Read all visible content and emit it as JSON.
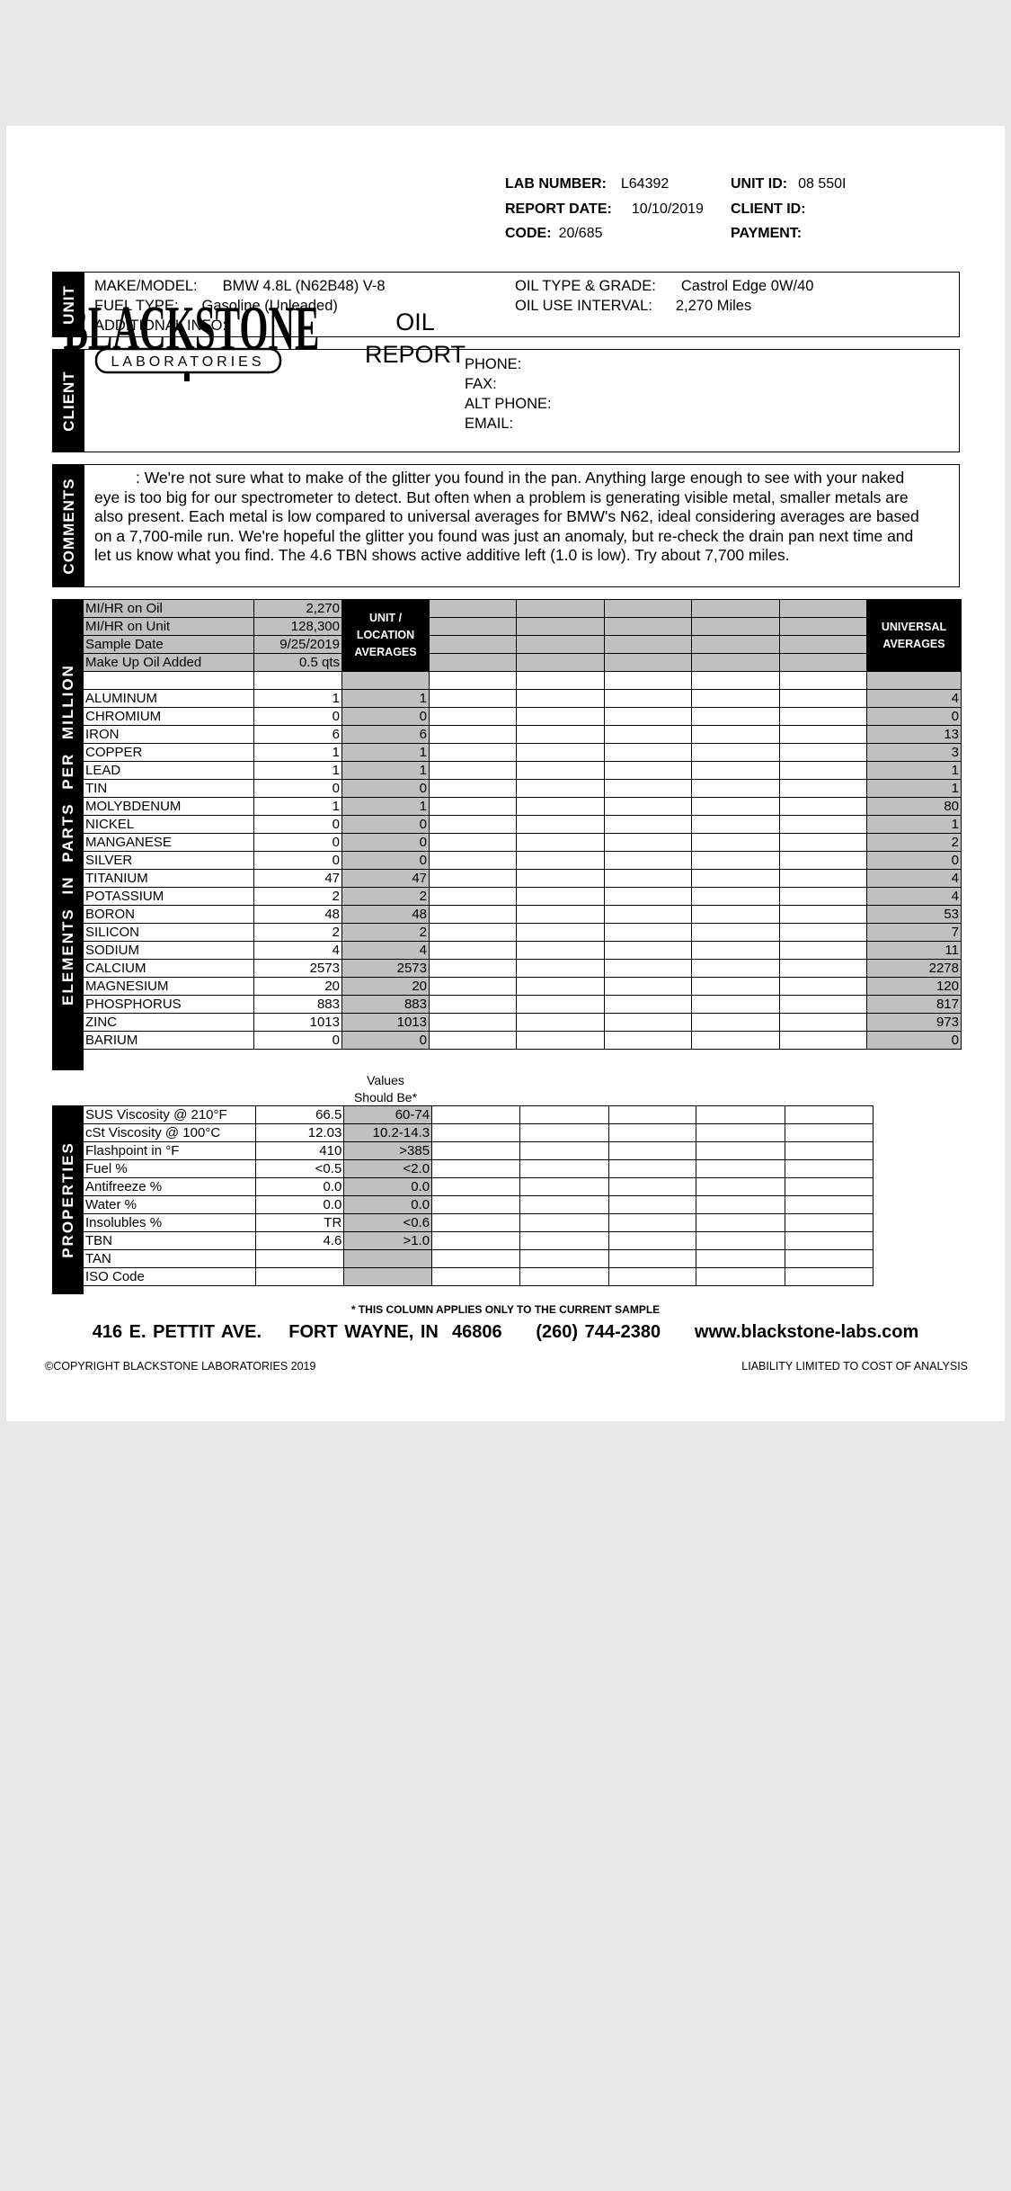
{
  "logo": {
    "name": "BLACKSTONE",
    "sub": "LABORATORIES"
  },
  "report_title": [
    "OIL",
    "REPORT"
  ],
  "header": {
    "lab_number_label": "LAB NUMBER:",
    "lab_number": "L64392",
    "report_date_label": "REPORT DATE:",
    "report_date": "10/10/2019",
    "code_label": "CODE:",
    "code": "20/685",
    "unit_id_label": "UNIT ID:",
    "unit_id": "08 550I",
    "client_id_label": "CLIENT ID:",
    "payment_label": "PAYMENT:"
  },
  "unit": {
    "section": "UNIT",
    "make_model_label": "MAKE/MODEL:",
    "make_model": "BMW 4.8L (N62B48) V-8",
    "fuel_type_label": "FUEL TYPE:",
    "fuel_type": "Gasoline (Unleaded)",
    "additional_info_label": "ADDITIONAL INFO:",
    "oil_type_label": "OIL TYPE & GRADE:",
    "oil_type": "Castrol Edge 0W/40",
    "oil_interval_label": "OIL USE INTERVAL:",
    "oil_interval": "2,270 Miles"
  },
  "client": {
    "section": "CLIENT",
    "phone_label": "PHONE:",
    "fax_label": "FAX:",
    "alt_phone_label": "ALT PHONE:",
    "email_label": "EMAIL:"
  },
  "comments": {
    "section": "COMMENTS",
    "text": ": We're not sure what to make of the glitter you found in the pan. Anything large enough to see with your naked eye is too big for our spectrometer to detect. But often when a problem is generating visible metal, smaller metals are also present. Each metal is low compared to universal averages for BMW's N62, ideal considering averages are based on a 7,700-mile run. We're hopeful the glitter you found was just an anomaly, but re-check the drain pan next time and let us know what you find. The 4.6 TBN shows active additive left (1.0 is low). Try about 7,700 miles."
  },
  "elements": {
    "section": "ELEMENTS IN PARTS PER MILLION",
    "unit_avg_header": "UNIT / LOCATION AVERAGES",
    "universal_header": "UNIVERSAL AVERAGES",
    "sample_info": [
      {
        "label": "MI/HR on Oil",
        "value": "2,270"
      },
      {
        "label": "MI/HR on Unit",
        "value": "128,300"
      },
      {
        "label": "Sample Date",
        "value": "9/25/2019"
      },
      {
        "label": "Make Up Oil Added",
        "value": "0.5 qts"
      }
    ],
    "rows": [
      {
        "name": "ALUMINUM",
        "value": "1",
        "unit_avg": "1",
        "universal": "4"
      },
      {
        "name": "CHROMIUM",
        "value": "0",
        "unit_avg": "0",
        "universal": "0"
      },
      {
        "name": "IRON",
        "value": "6",
        "unit_avg": "6",
        "universal": "13"
      },
      {
        "name": "COPPER",
        "value": "1",
        "unit_avg": "1",
        "universal": "3"
      },
      {
        "name": "LEAD",
        "value": "1",
        "unit_avg": "1",
        "universal": "1"
      },
      {
        "name": "TIN",
        "value": "0",
        "unit_avg": "0",
        "universal": "1"
      },
      {
        "name": "MOLYBDENUM",
        "value": "1",
        "unit_avg": "1",
        "universal": "80"
      },
      {
        "name": "NICKEL",
        "value": "0",
        "unit_avg": "0",
        "universal": "1"
      },
      {
        "name": "MANGANESE",
        "value": "0",
        "unit_avg": "0",
        "universal": "2"
      },
      {
        "name": "SILVER",
        "value": "0",
        "unit_avg": "0",
        "universal": "0"
      },
      {
        "name": "TITANIUM",
        "value": "47",
        "unit_avg": "47",
        "universal": "4"
      },
      {
        "name": "POTASSIUM",
        "value": "2",
        "unit_avg": "2",
        "universal": "4"
      },
      {
        "name": "BORON",
        "value": "48",
        "unit_avg": "48",
        "universal": "53"
      },
      {
        "name": "SILICON",
        "value": "2",
        "unit_avg": "2",
        "universal": "7"
      },
      {
        "name": "SODIUM",
        "value": "4",
        "unit_avg": "4",
        "universal": "11"
      },
      {
        "name": "CALCIUM",
        "value": "2573",
        "unit_avg": "2573",
        "universal": "2278"
      },
      {
        "name": "MAGNESIUM",
        "value": "20",
        "unit_avg": "20",
        "universal": "120"
      },
      {
        "name": "PHOSPHORUS",
        "value": "883",
        "unit_avg": "883",
        "universal": "817"
      },
      {
        "name": "ZINC",
        "value": "1013",
        "unit_avg": "1013",
        "universal": "973"
      },
      {
        "name": "BARIUM",
        "value": "0",
        "unit_avg": "0",
        "universal": "0"
      }
    ]
  },
  "properties": {
    "section": "PROPERTIES",
    "should_be_header": [
      "Values",
      "Should Be*"
    ],
    "rows": [
      {
        "name": "SUS Viscosity @ 210°F",
        "value": "66.5",
        "should_be": "60-74"
      },
      {
        "name": "cSt Viscosity @ 100°C",
        "value": "12.03",
        "should_be": "10.2-14.3"
      },
      {
        "name": "Flashpoint in °F",
        "value": "410",
        "should_be": ">385"
      },
      {
        "name": "Fuel %",
        "value": "<0.5",
        "should_be": "<2.0"
      },
      {
        "name": "Antifreeze %",
        "value": "0.0",
        "should_be": "0.0"
      },
      {
        "name": "Water %",
        "value": "0.0",
        "should_be": "0.0"
      },
      {
        "name": "Insolubles %",
        "value": "TR",
        "should_be": "<0.6"
      },
      {
        "name": "TBN",
        "value": "4.6",
        "should_be": ">1.0"
      },
      {
        "name": "TAN",
        "value": "",
        "should_be": ""
      },
      {
        "name": "ISO Code",
        "value": "",
        "should_be": ""
      }
    ]
  },
  "footer": {
    "note": "* THIS COLUMN APPLIES ONLY TO THE CURRENT SAMPLE",
    "address": "416 E. PETTIT AVE.    FORT WAYNE, IN  46806     (260) 744-2380     www.blackstone-labs.com",
    "copyright": "©COPYRIGHT BLACKSTONE LABORATORIES  2019",
    "liability": "LIABILITY LIMITED TO COST OF ANALYSIS"
  },
  "colors": {
    "page_bg": "#e8e8e8",
    "shade": "#c0c0c0",
    "label_strip": "#000000"
  }
}
